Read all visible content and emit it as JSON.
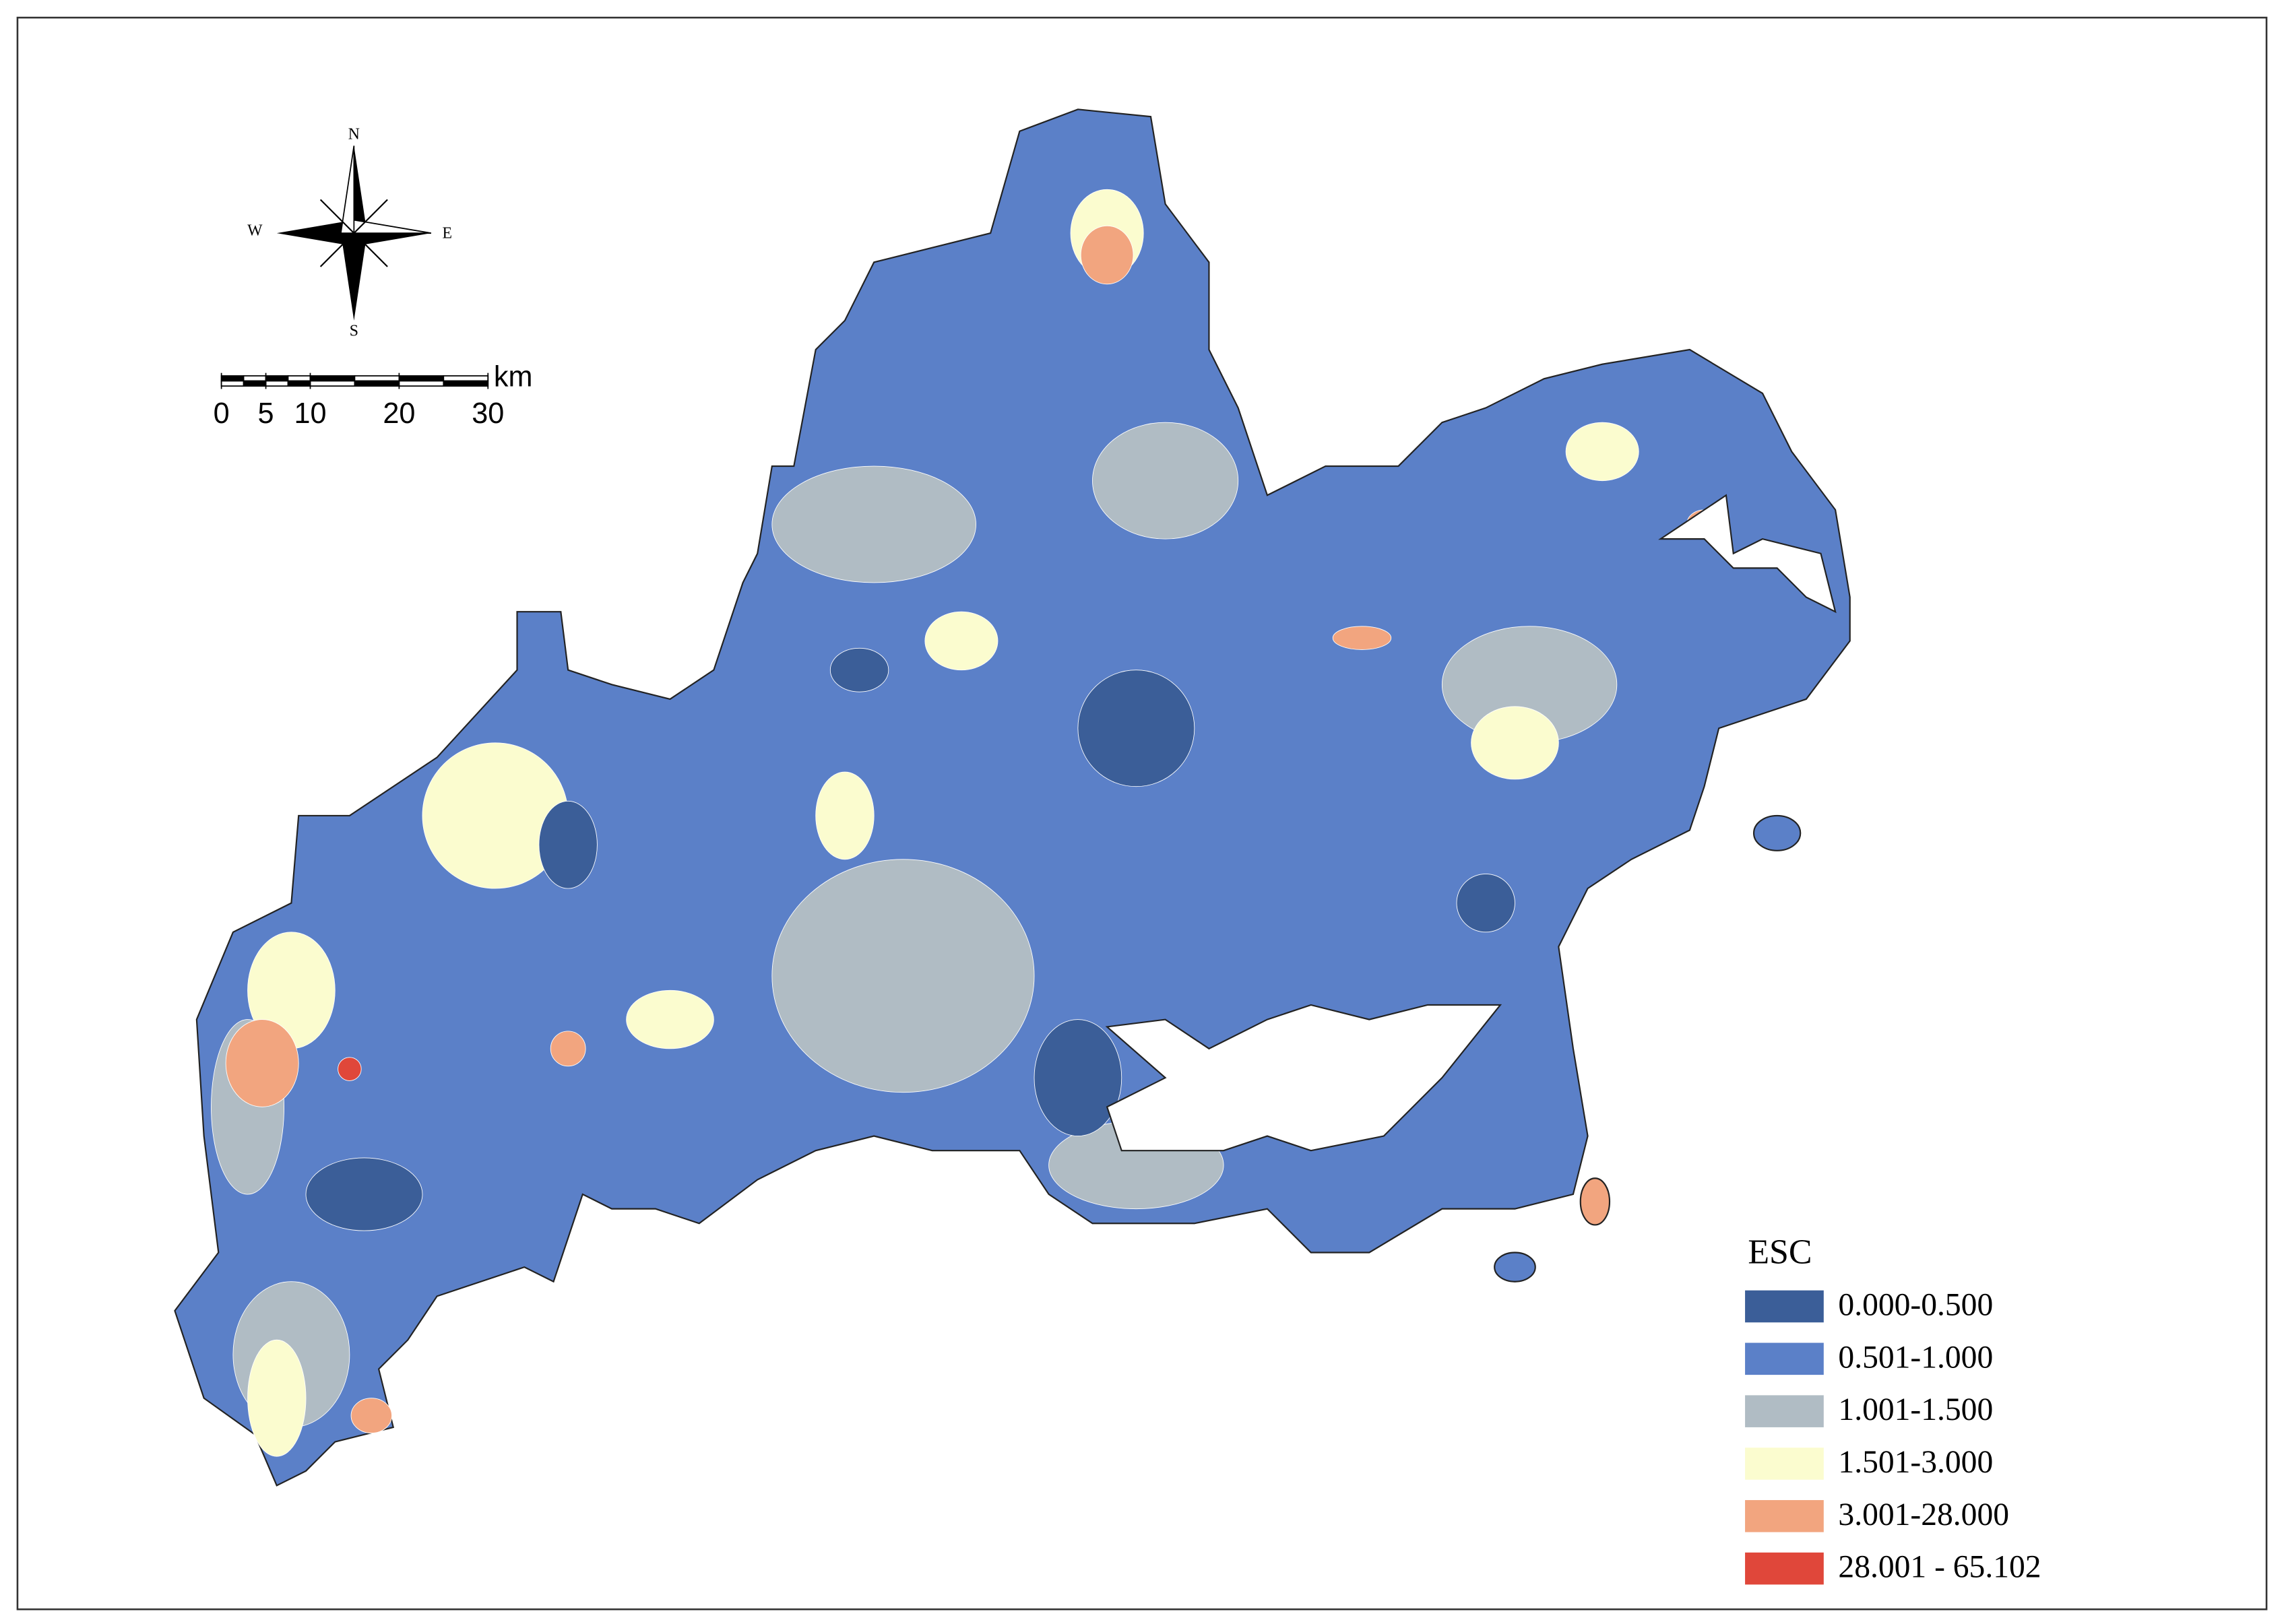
{
  "compass": {
    "north": "N",
    "south": "S",
    "east": "E",
    "west": "W"
  },
  "scale_bar": {
    "unit": "km",
    "ticks": [
      0,
      5,
      10,
      20,
      30
    ]
  },
  "legend": {
    "title": "ESC",
    "items": [
      {
        "label": "0.000-0.500",
        "color": "#3b5e98"
      },
      {
        "label": "0.501-1.000",
        "color": "#5b80c8"
      },
      {
        "label": "1.001-1.500",
        "color": "#b0bcc4"
      },
      {
        "label": "1.501-3.000",
        "color": "#fbfccf"
      },
      {
        "label": "3.001-28.000",
        "color": "#f2a57f"
      },
      {
        "label": "28.001 - 65.102",
        "color": "#e0473a"
      }
    ]
  }
}
